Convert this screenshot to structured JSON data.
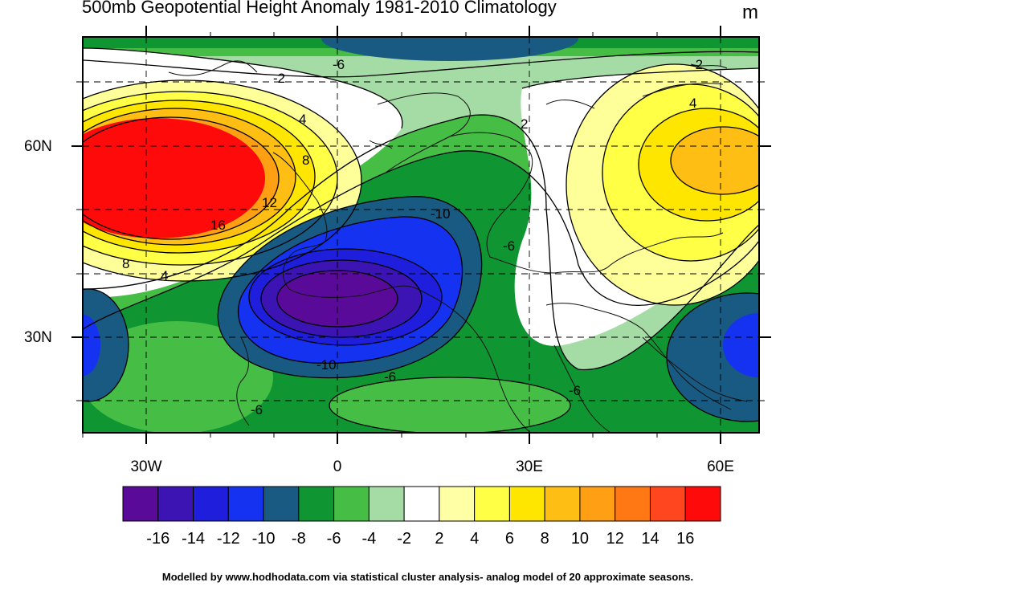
{
  "header": {
    "title": "500mb Geopotential Height Anomaly  1981-2010 Climatology",
    "units": "m"
  },
  "axes": {
    "lat_labels": [
      "60N",
      "30N"
    ],
    "lon_labels": [
      "30W",
      "0",
      "30E",
      "60E"
    ]
  },
  "contour_labels": [
    "-6",
    "-2",
    "4",
    "8",
    "12",
    "16",
    "8",
    "4",
    "-2",
    "4",
    "2",
    "-10",
    "-6",
    "-10",
    "-6",
    "-6",
    "-6"
  ],
  "colorbar": {
    "colors": [
      "#5a0a98",
      "#3c14b4",
      "#1e1edc",
      "#1432f0",
      "#195a82",
      "#0f9632",
      "#46be46",
      "#a5dca5",
      "#ffffff",
      "#ffffa5",
      "#ffff46",
      "#ffe600",
      "#ffbe14",
      "#ffa014",
      "#ff7814",
      "#ff461e",
      "#ff0a0a"
    ],
    "labels": [
      "-16",
      "-14",
      "-12",
      "-10",
      "-8",
      "-6",
      "-4",
      "-2",
      "2",
      "4",
      "6",
      "8",
      "10",
      "12",
      "14",
      "16"
    ]
  },
  "footer": {
    "credit": "Modelled by www.hodhodata.com via statistical cluster analysis- analog model of 20 approximate seasons."
  }
}
